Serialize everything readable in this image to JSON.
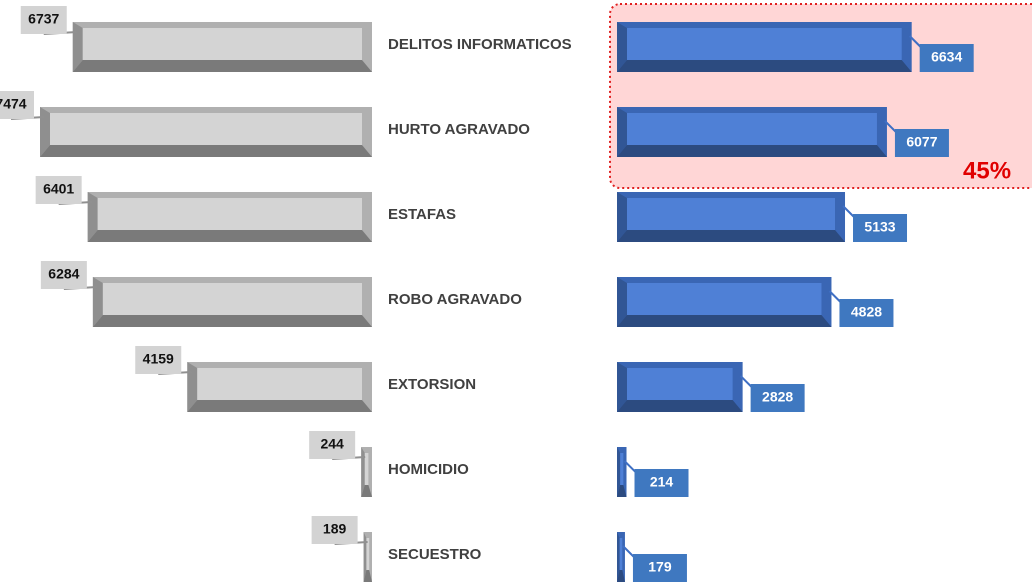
{
  "chart_data": {
    "type": "butterfly-bar",
    "categories": [
      "DELITOS INFORMATICOS",
      "HURTO AGRAVADO",
      "ESTAFAS",
      "ROBO AGRAVADO",
      "EXTORSION",
      "HOMICIDIO",
      "SECUESTRO"
    ],
    "series": [
      {
        "color": "#9a9a9a",
        "values": [
          6737,
          7474,
          6401,
          6284,
          4159,
          244,
          189
        ]
      },
      {
        "color": "#3f6fc4",
        "values": [
          6634,
          6077,
          5133,
          4828,
          2828,
          214,
          179
        ]
      }
    ],
    "annotation": "45%"
  }
}
